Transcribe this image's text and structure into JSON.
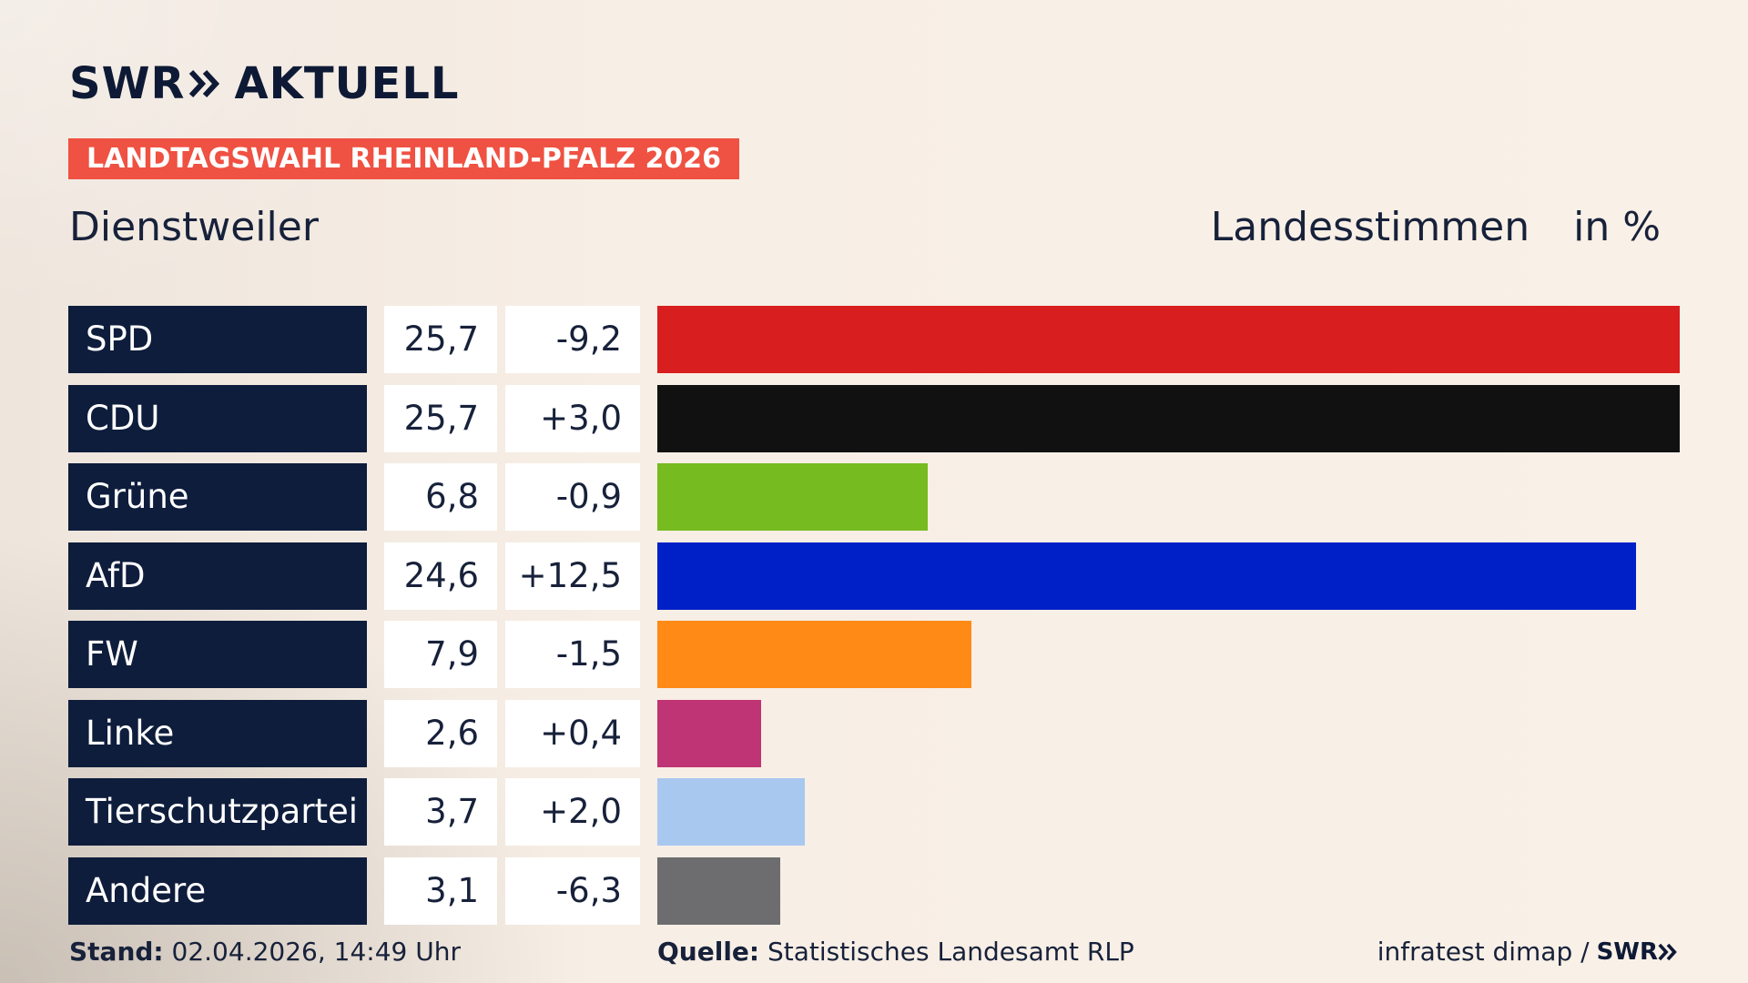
{
  "brand": {
    "logo_text": "SWR",
    "product": "AKTUELL"
  },
  "election_label": "LANDTAGSWAHL RHEINLAND-PFALZ 2026",
  "place": "Dienstweiler",
  "measure": {
    "label": "Landesstimmen",
    "unit": "in %"
  },
  "chart_data": {
    "type": "bar",
    "orientation": "horizontal",
    "categories": [
      "SPD",
      "CDU",
      "Grüne",
      "AfD",
      "FW",
      "Linke",
      "Tierschutzpartei",
      "Andere"
    ],
    "values": [
      25.7,
      25.7,
      6.8,
      24.6,
      7.9,
      2.6,
      3.7,
      3.1
    ],
    "value_labels": [
      "25,7",
      "25,7",
      "6,8",
      "24,6",
      "7,9",
      "2,6",
      "3,7",
      "3,1"
    ],
    "changes": [
      -9.2,
      3.0,
      -0.9,
      12.5,
      -1.5,
      0.4,
      2.0,
      -6.3
    ],
    "change_labels": [
      "-9,2",
      "+3,0",
      "-0,9",
      "+12,5",
      "-1,5",
      "+0,4",
      "+2,0",
      "-6,3"
    ],
    "colors": [
      "#d81e1e",
      "#111111",
      "#76bb1f",
      "#0020c7",
      "#ff8a15",
      "#bf3474",
      "#a9c8ef",
      "#6d6d6f"
    ],
    "xlim": [
      0,
      25.7
    ],
    "grid": false,
    "legend": "none"
  },
  "footer": {
    "stand_label": "Stand:",
    "stand_value": "02.04.2026, 14:49 Uhr",
    "source_label": "Quelle:",
    "source_value": "Statistisches Landesamt RLP",
    "credit_text": "infratest dimap /",
    "credit_brand": "SWR"
  }
}
